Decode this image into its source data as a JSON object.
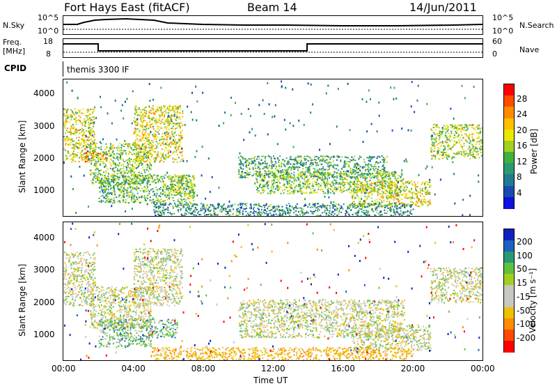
{
  "header": {
    "station": "Fort Hays East (fitACF)",
    "beam": "Beam 14",
    "date": "14/Jun/2011"
  },
  "top_panels": {
    "nsky_label": "N.Sky",
    "nsky_ticks": [
      "10^5",
      "10^0"
    ],
    "nsearch_label": "N.Search",
    "nsearch_ticks": [
      "10^5",
      "10^0"
    ],
    "freq_label_1": "Freq.",
    "freq_label_2": "[MHz]",
    "freq_ticks": [
      "18",
      "8"
    ],
    "nave_label": "Nave",
    "nave_ticks": [
      "60",
      "0"
    ],
    "cpid_label": "CPID",
    "cpid_value": "themis 3300 IF"
  },
  "power_colorbar": {
    "label": "Power [dB]",
    "ticks": [
      "28",
      "24",
      "20",
      "16",
      "12",
      "8",
      "4"
    ],
    "colors": [
      "#ff0000",
      "#ff4a00",
      "#ff8c00",
      "#ffc000",
      "#e8e800",
      "#a0d020",
      "#40b040",
      "#2a9a70",
      "#207a90",
      "#1a4ab0",
      "#1010e0"
    ]
  },
  "velocity_colorbar": {
    "label": "Velocity [m s⁻¹]",
    "ticks": [
      "200",
      "100",
      "50",
      "15",
      "-15",
      "-50",
      "-100",
      "-200"
    ],
    "colors": [
      "#1020c0",
      "#2060c0",
      "#2a9a70",
      "#60c040",
      "#a0d020",
      "#c8c8c0",
      "#c8c8c0",
      "#f0c000",
      "#ff8c00",
      "#ff4a00",
      "#ff0000"
    ]
  },
  "axes": {
    "ylabel": "Slant Range [km]",
    "xlabel": "Time UT",
    "yticks": [
      "4000",
      "3000",
      "2000",
      "1000"
    ],
    "xticks": [
      "00:00",
      "04:00",
      "08:00",
      "12:00",
      "16:00",
      "20:00",
      "00:00"
    ]
  },
  "chart_data": [
    {
      "type": "heatmap",
      "title": "",
      "quantity": "Power",
      "unit": "dB",
      "xlabel": "Time UT",
      "ylabel": "Slant Range [km]",
      "xlim_hours": [
        0,
        24
      ],
      "ylim_km": [
        180,
        4500
      ],
      "clim": [
        0,
        30
      ],
      "scatter_regions": [
        {
          "t_start": 0.0,
          "t_end": 1.8,
          "r_top": 3600,
          "r_bottom": 1900,
          "power": 18
        },
        {
          "t_start": 1.0,
          "t_end": 2.5,
          "r_top": 2200,
          "r_bottom": 1900,
          "power": 24
        },
        {
          "t_start": 1.5,
          "t_end": 5.0,
          "r_top": 2500,
          "r_bottom": 1200,
          "power": 14
        },
        {
          "t_start": 4.0,
          "t_end": 6.8,
          "r_top": 3700,
          "r_bottom": 1900,
          "power": 18
        },
        {
          "t_start": 2.0,
          "t_end": 7.5,
          "r_top": 1500,
          "r_bottom": 600,
          "power": 12
        },
        {
          "t_start": 6.0,
          "t_end": 7.5,
          "r_top": 1500,
          "r_bottom": 800,
          "power": 16
        },
        {
          "t_start": 10.0,
          "t_end": 18.5,
          "r_top": 2100,
          "r_bottom": 1400,
          "power": 10
        },
        {
          "t_start": 11.0,
          "t_end": 19.5,
          "r_top": 1600,
          "r_bottom": 900,
          "power": 14
        },
        {
          "t_start": 16.5,
          "t_end": 21.0,
          "r_top": 1300,
          "r_bottom": 500,
          "power": 18
        },
        {
          "t_start": 21.0,
          "t_end": 24.0,
          "r_top": 3100,
          "r_bottom": 2000,
          "power": 16
        },
        {
          "t_start": 5.0,
          "t_end": 20.0,
          "r_top": 600,
          "r_bottom": 200,
          "power": 8
        }
      ]
    },
    {
      "type": "heatmap",
      "title": "",
      "quantity": "Velocity",
      "unit": "m s-1",
      "xlabel": "Time UT",
      "ylabel": "Slant Range [km]",
      "xlim_hours": [
        0,
        24
      ],
      "ylim_km": [
        180,
        4500
      ],
      "clim": [
        -200,
        200
      ],
      "scatter_regions": [
        {
          "t_start": 0.0,
          "t_end": 1.8,
          "r_top": 3600,
          "r_bottom": 1900,
          "velocity": 0
        },
        {
          "t_start": 1.5,
          "t_end": 5.0,
          "r_top": 2500,
          "r_bottom": 1200,
          "velocity": 0
        },
        {
          "t_start": 4.0,
          "t_end": 6.8,
          "r_top": 3700,
          "r_bottom": 1900,
          "velocity": 0
        },
        {
          "t_start": 2.0,
          "t_end": 5.0,
          "r_top": 1500,
          "r_bottom": 600,
          "velocity": 30
        },
        {
          "t_start": 5.0,
          "t_end": 6.5,
          "r_top": 1500,
          "r_bottom": 900,
          "velocity": 30
        },
        {
          "t_start": 10.0,
          "t_end": 19.5,
          "r_top": 2100,
          "r_bottom": 900,
          "velocity": 0
        },
        {
          "t_start": 16.5,
          "t_end": 21.0,
          "r_top": 1300,
          "r_bottom": 500,
          "velocity": 0
        },
        {
          "t_start": 21.0,
          "t_end": 24.0,
          "r_top": 3100,
          "r_bottom": 2000,
          "velocity": 0
        },
        {
          "t_start": 5.0,
          "t_end": 20.0,
          "r_top": 600,
          "r_bottom": 200,
          "velocity": -40
        }
      ]
    }
  ]
}
